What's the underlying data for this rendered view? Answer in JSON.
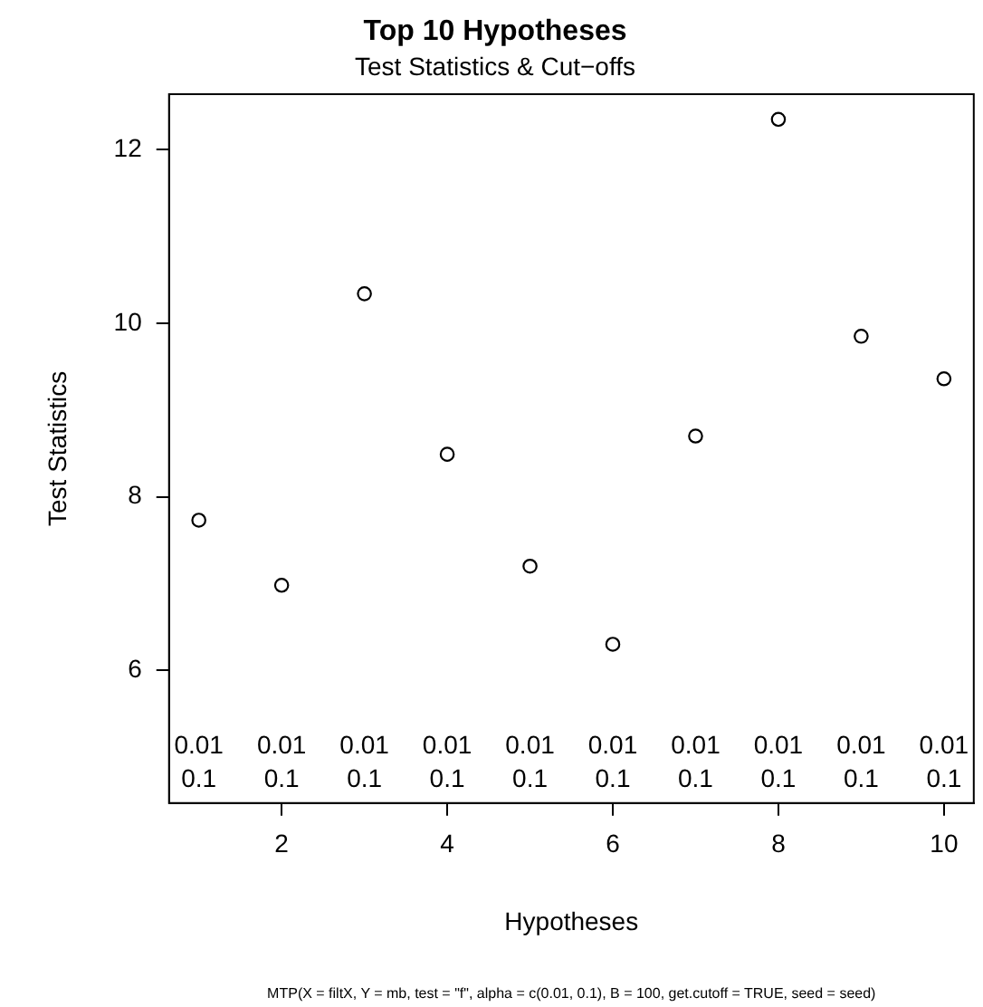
{
  "chart_data": {
    "type": "scatter",
    "title": "Top 10 Hypotheses",
    "subtitle": "Test Statistics & Cut−offs",
    "xlabel": "Hypotheses",
    "ylabel": "Test Statistics",
    "x": [
      1,
      2,
      3,
      4,
      5,
      6,
      7,
      8,
      9,
      10
    ],
    "series": [
      {
        "color": "#000000",
        "values": [
          7.73,
          6.98,
          10.34,
          8.49,
          7.2,
          6.3,
          8.7,
          12.35,
          9.85,
          9.36
        ]
      }
    ],
    "marker": "circle",
    "xlim": [
      0.64,
      10.36
    ],
    "xticks": [
      2,
      4,
      6,
      8,
      10
    ],
    "ylim": [
      4.47,
      12.64
    ],
    "yticks": [
      6,
      8,
      10,
      12
    ],
    "annotations": [
      "0.01",
      "0.01",
      "0.01",
      "0.01",
      "0.01",
      "0.01",
      "0.01",
      "0.01",
      "0.01",
      "0.01",
      "0.1",
      "0.1",
      "0.1",
      "0.1",
      "0.1",
      "0.1",
      "0.1",
      "0.1",
      "0.1",
      "0.1",
      "MTP(X = filtX, Y = mb, test = \"f\", alpha = c(0.01, 0.1), B = 100, get.cutoff = TRUE, seed = seed)"
    ]
  }
}
